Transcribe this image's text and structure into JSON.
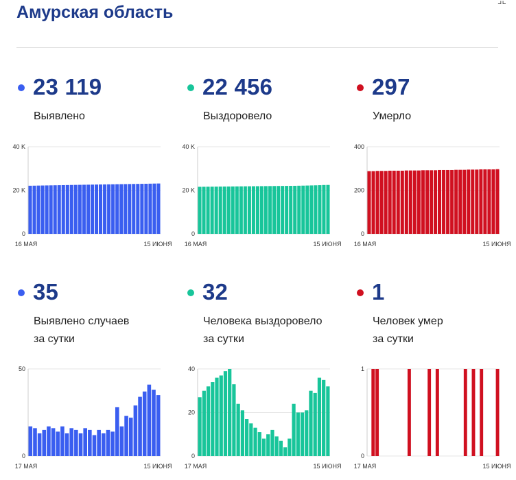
{
  "title": "Амурская область",
  "corner_mark": "⌟⌞",
  "colors": {
    "blue": "#3a5ef0",
    "green": "#18c59a",
    "red": "#d01020",
    "title": "#1d3a8a"
  },
  "cards": [
    {
      "value": "23 119",
      "label_lines": [
        "Выявлено"
      ],
      "color": "blue"
    },
    {
      "value": "22 456",
      "label_lines": [
        "Выздоровело"
      ],
      "color": "green"
    },
    {
      "value": "297",
      "label_lines": [
        "Умерло"
      ],
      "color": "red"
    },
    {
      "value": "35",
      "label_lines": [
        "Выявлено случаев",
        "за сутки"
      ],
      "color": "blue"
    },
    {
      "value": "32",
      "label_lines": [
        "Человека выздоровело",
        "за сутки"
      ],
      "color": "green"
    },
    {
      "value": "1",
      "label_lines": [
        "Человек умер",
        "за сутки"
      ],
      "color": "red"
    }
  ],
  "chart_data": [
    {
      "type": "bar",
      "series_name": "Выявлено",
      "color": "blue",
      "ylim": [
        0,
        40000
      ],
      "yticks": [
        0,
        20000,
        40000
      ],
      "ytick_labels": [
        "0",
        "20 K",
        "40 K"
      ],
      "x_start_label": "16 МАЯ",
      "x_end_label": "15 ИЮНЯ",
      "values": [
        22090,
        22120,
        22160,
        22195,
        22230,
        22265,
        22300,
        22335,
        22370,
        22405,
        22440,
        22475,
        22510,
        22545,
        22580,
        22610,
        22640,
        22670,
        22700,
        22730,
        22760,
        22790,
        22820,
        22850,
        22880,
        22910,
        22940,
        22970,
        23000,
        23040,
        23084,
        23119
      ]
    },
    {
      "type": "bar",
      "series_name": "Выздоровело",
      "color": "green",
      "ylim": [
        0,
        40000
      ],
      "yticks": [
        0,
        20000,
        40000
      ],
      "ytick_labels": [
        "0",
        "20 K",
        "40 K"
      ],
      "x_start_label": "16 МАЯ",
      "x_end_label": "15 ИЮНЯ",
      "values": [
        21600,
        21620,
        21640,
        21660,
        21680,
        21700,
        21720,
        21740,
        21760,
        21780,
        21800,
        21820,
        21840,
        21860,
        21880,
        21900,
        21920,
        21940,
        21960,
        21980,
        22000,
        22020,
        22040,
        22060,
        22100,
        22140,
        22180,
        22230,
        22280,
        22340,
        22424,
        22456
      ]
    },
    {
      "type": "bar",
      "series_name": "Умерло",
      "color": "red",
      "ylim": [
        0,
        400
      ],
      "yticks": [
        0,
        200,
        400
      ],
      "ytick_labels": [
        "0",
        "200",
        "400"
      ],
      "x_start_label": "16 МАЯ",
      "x_end_label": "15 ИЮНЯ",
      "values": [
        288,
        288,
        289,
        289,
        289,
        290,
        290,
        290,
        290,
        291,
        291,
        291,
        291,
        292,
        292,
        292,
        292,
        293,
        293,
        293,
        293,
        294,
        294,
        294,
        295,
        295,
        295,
        296,
        296,
        296,
        296,
        297
      ]
    },
    {
      "type": "bar",
      "series_name": "Выявлено случаев за сутки",
      "color": "blue",
      "ylim": [
        0,
        50
      ],
      "yticks": [
        0,
        50
      ],
      "ytick_labels": [
        "0",
        "50"
      ],
      "x_start_label": "17 МАЯ",
      "x_end_label": "15 ИЮНЯ",
      "values": [
        17,
        16,
        13,
        15,
        17,
        16,
        14,
        17,
        13,
        16,
        15,
        13,
        16,
        15,
        12,
        15,
        13,
        15,
        14,
        28,
        17,
        23,
        22,
        29,
        34,
        37,
        41,
        38,
        35
      ]
    },
    {
      "type": "bar",
      "series_name": "Человека выздоровело за сутки",
      "color": "green",
      "ylim": [
        0,
        40
      ],
      "yticks": [
        0,
        20,
        40
      ],
      "ytick_labels": [
        "0",
        "20",
        "40"
      ],
      "x_start_label": "17 МАЯ",
      "x_end_label": "15 ИЮНЯ",
      "values": [
        27,
        30,
        32,
        34,
        36,
        37,
        39,
        40,
        33,
        24,
        21,
        17,
        15,
        13,
        11,
        8,
        10,
        12,
        9,
        7,
        4,
        8,
        24,
        20,
        20,
        21,
        30,
        29,
        36,
        35,
        32
      ]
    },
    {
      "type": "bar",
      "series_name": "Человек умер за сутки",
      "color": "red",
      "ylim": [
        0,
        1
      ],
      "yticks": [
        0,
        1
      ],
      "ytick_labels": [
        "0",
        "1"
      ],
      "x_start_label": "17 МАЯ",
      "x_end_label": "15 ИЮНЯ",
      "values": [
        0,
        1,
        1,
        0,
        0,
        0,
        0,
        0,
        0,
        0,
        1,
        0,
        0,
        0,
        0,
        1,
        0,
        1,
        0,
        0,
        0,
        0,
        0,
        0,
        1,
        0,
        1,
        0,
        1,
        0,
        0,
        0,
        1
      ]
    }
  ]
}
